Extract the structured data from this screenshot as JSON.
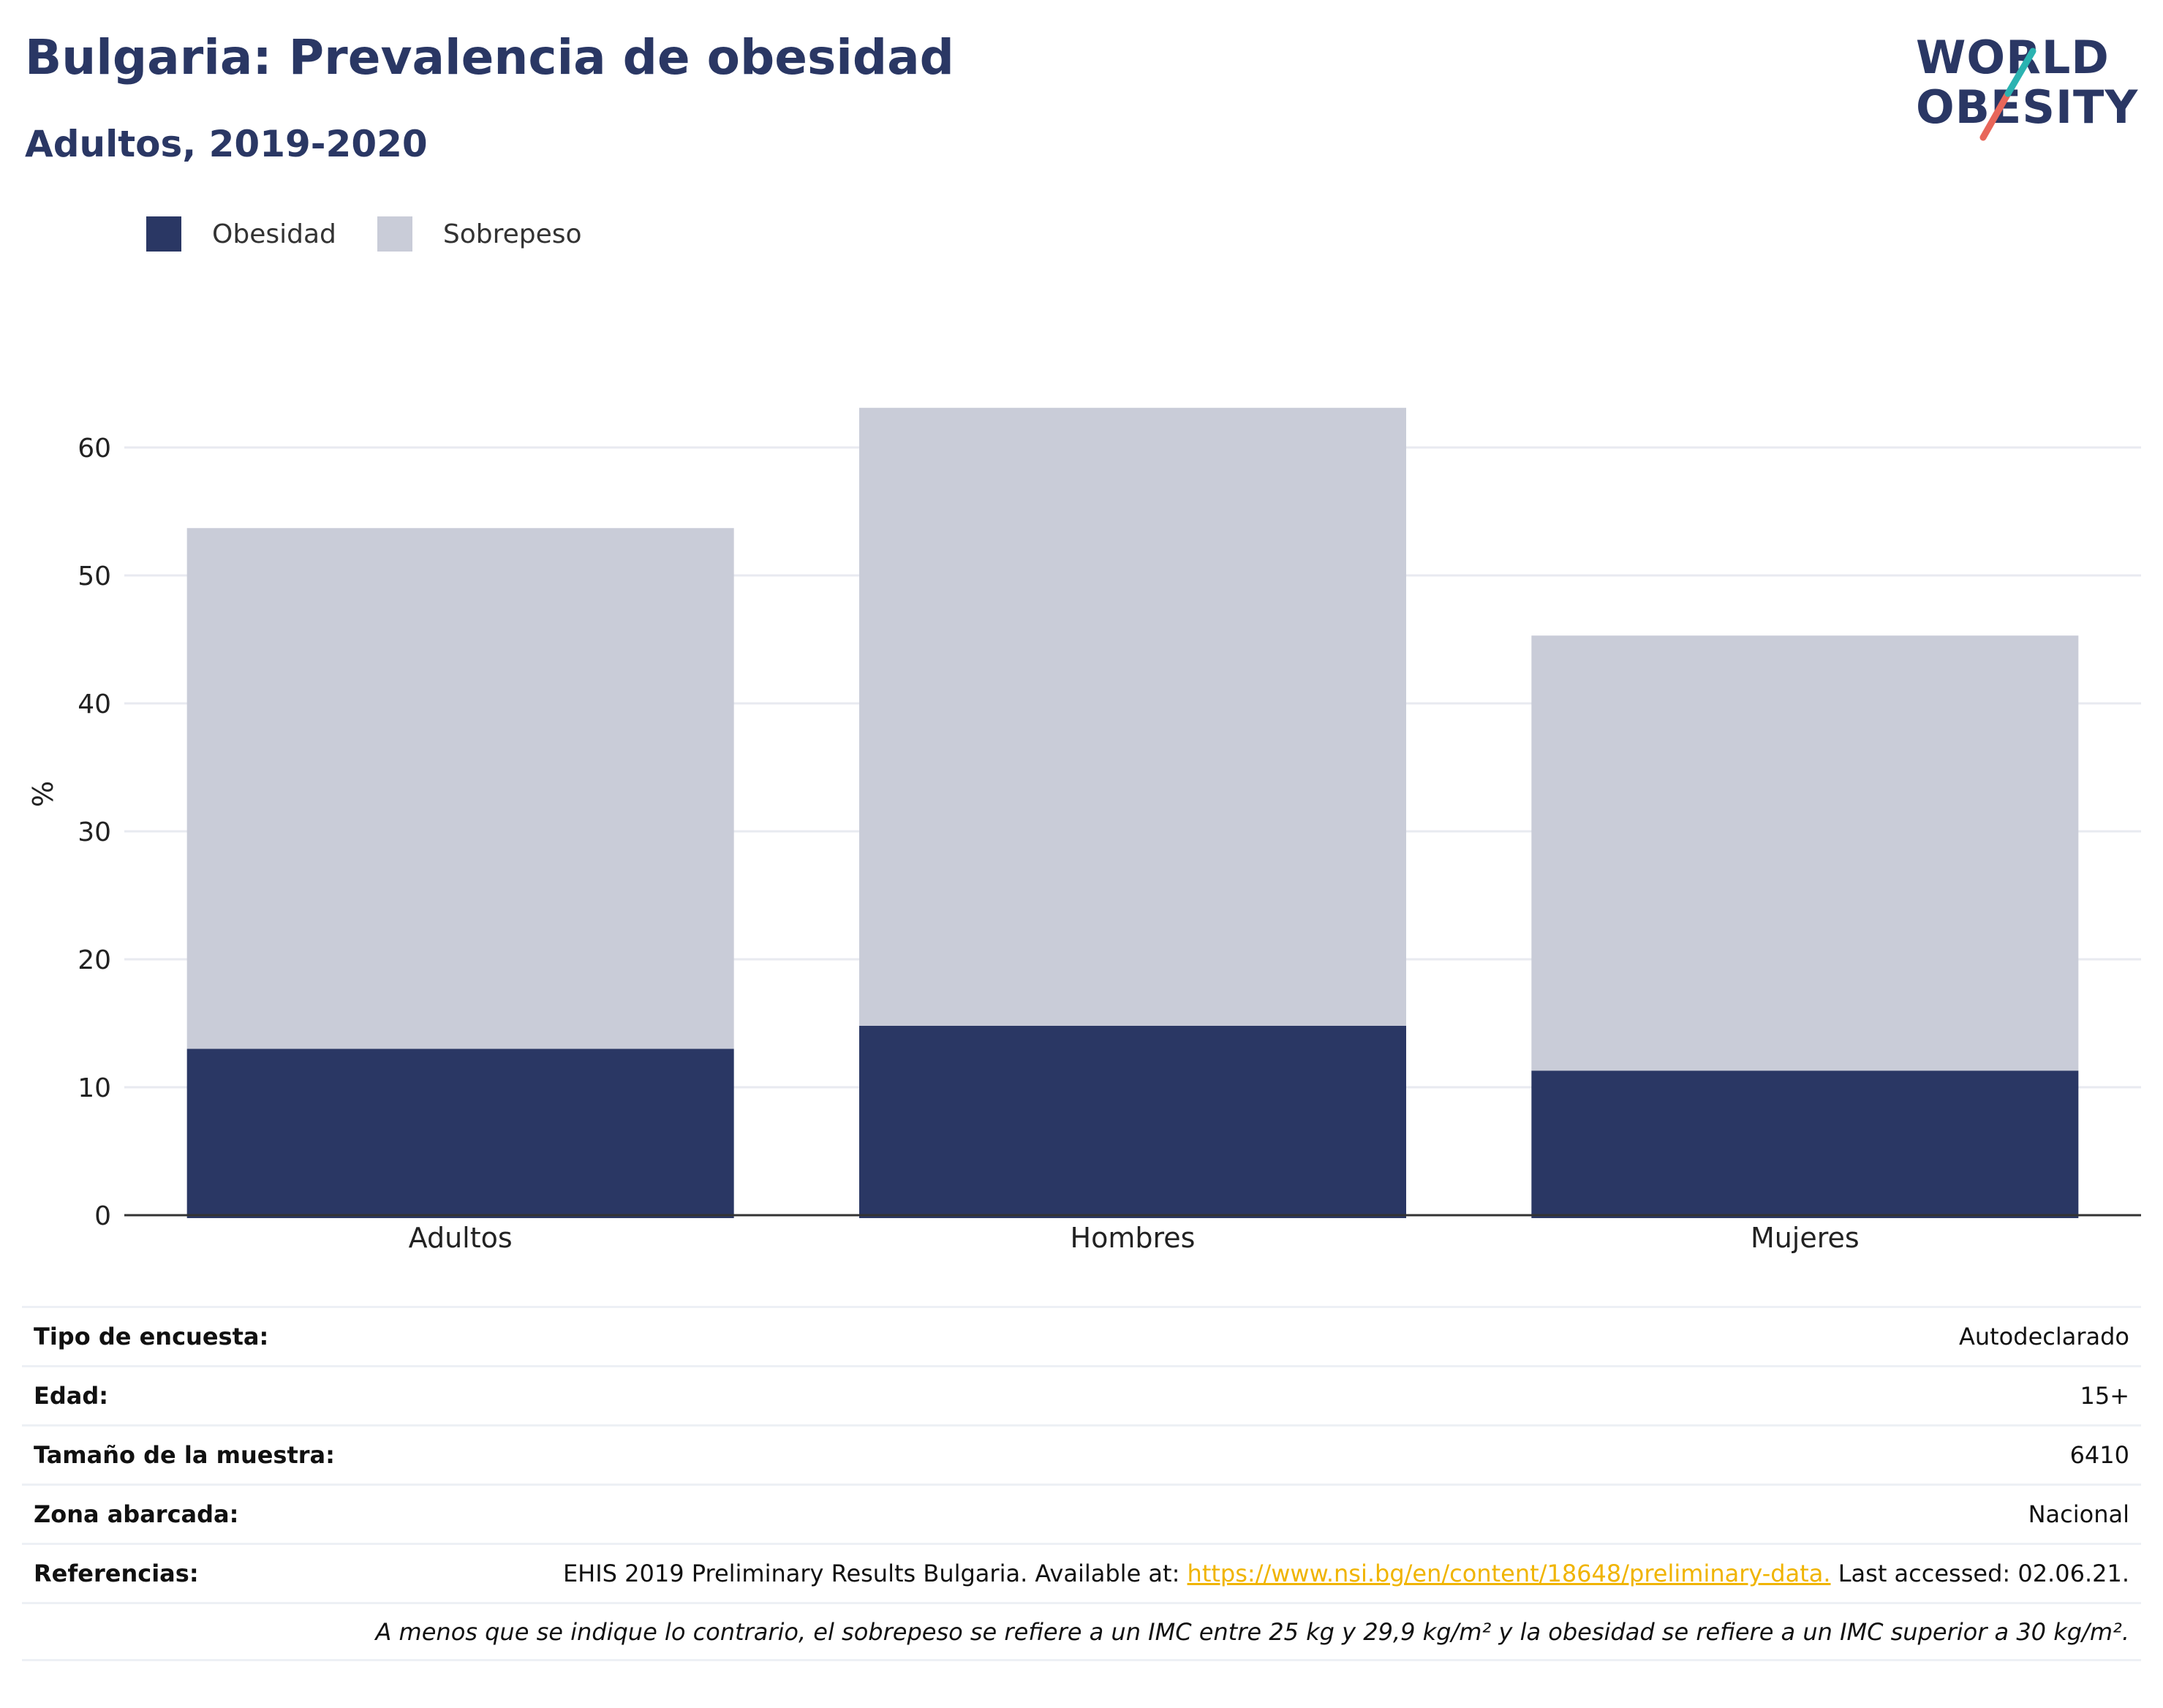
{
  "header": {
    "title": "Bulgaria: Prevalencia de obesidad",
    "subtitle": "Adultos, 2019-2020"
  },
  "logo": {
    "line1": "WORLD",
    "line2": "OBESITY",
    "colors": {
      "text": "#2a3764",
      "slash_top": "#2bb3b1",
      "slash_bottom": "#e8665a"
    }
  },
  "legend": [
    {
      "label": "Obesidad",
      "color": "#2a3764"
    },
    {
      "label": "Sobrepeso",
      "color": "#c9ccd8"
    }
  ],
  "chart_data": {
    "type": "bar",
    "stacked": true,
    "categories": [
      "Adultos",
      "Hombres",
      "Mujeres"
    ],
    "series": [
      {
        "name": "Obesidad",
        "values": [
          13.0,
          14.8,
          11.3
        ],
        "color": "#2a3764"
      },
      {
        "name": "Sobrepeso",
        "values": [
          40.7,
          48.3,
          34.0
        ],
        "color": "#c9ccd8"
      }
    ],
    "ylabel": "%",
    "ylim": [
      0,
      63
    ],
    "yticks": [
      0,
      10,
      20,
      30,
      40,
      50,
      60
    ],
    "grid": true,
    "legend_position": "top-left"
  },
  "info_table": [
    {
      "label": "Tipo de encuesta:",
      "value": "Autodeclarado"
    },
    {
      "label": "Edad:",
      "value": "15+"
    },
    {
      "label": "Tamaño de la muestra:",
      "value": "6410"
    },
    {
      "label": "Zona abarcada:",
      "value": "Nacional"
    }
  ],
  "references": {
    "label": "Referencias:",
    "text_before": "EHIS 2019 Preliminary Results Bulgaria. Available at: ",
    "link": "https://www.nsi.bg/en/content/18648/preliminary-data.",
    "text_after": " Last accessed: 02.06.21."
  },
  "note": "A menos que se indique lo contrario, el sobrepeso se refiere a un IMC entre 25 kg y 29,9 kg/m² y la obesidad se refiere a un IMC superior a 30 kg/m²."
}
